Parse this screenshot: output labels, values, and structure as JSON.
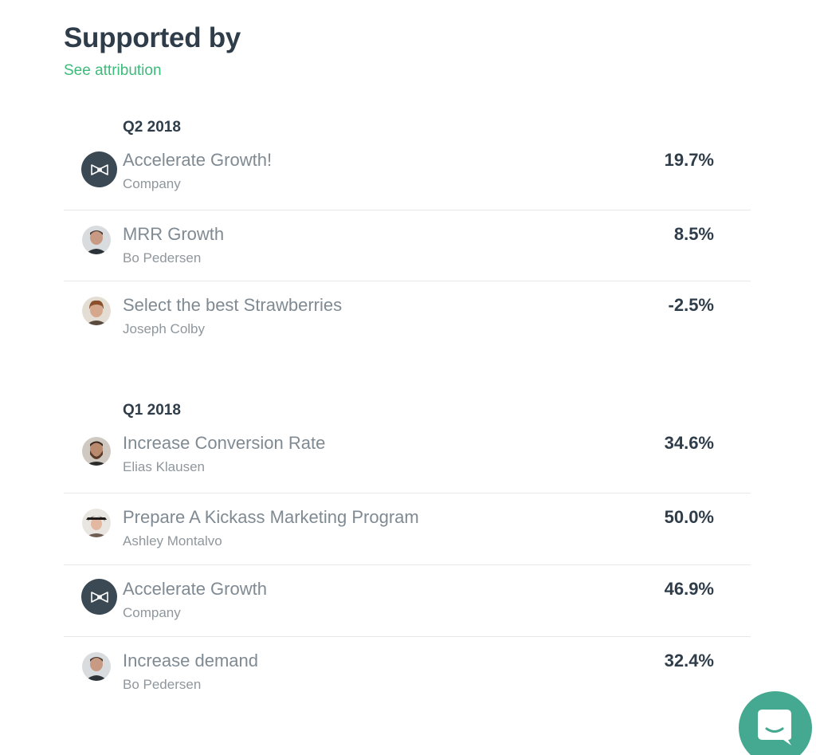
{
  "header": {
    "title": "Supported by",
    "attribution_link": "See attribution"
  },
  "sections": [
    {
      "label": "Q2 2018",
      "goals": [
        {
          "title": "Accelerate Growth!",
          "owner": "Company",
          "percent": "19.7%",
          "avatar": "company-bowtie-icon"
        },
        {
          "title": "MRR Growth",
          "owner": "Bo Pedersen",
          "percent": "8.5%",
          "avatar": "user-photo"
        },
        {
          "title": "Select the best Strawberries",
          "owner": "Joseph Colby",
          "percent": "-2.5%",
          "avatar": "user-photo"
        }
      ]
    },
    {
      "label": "Q1 2018",
      "goals": [
        {
          "title": "Increase Conversion Rate",
          "owner": "Elias Klausen",
          "percent": "34.6%",
          "avatar": "user-photo"
        },
        {
          "title": "Prepare A Kickass Marketing Program",
          "owner": "Ashley Montalvo",
          "percent": "50.0%",
          "avatar": "user-photo"
        },
        {
          "title": "Accelerate Growth",
          "owner": "Company",
          "percent": "46.9%",
          "avatar": "company-bowtie-icon"
        },
        {
          "title": "Increase demand",
          "owner": "Bo Pedersen",
          "percent": "32.4%",
          "avatar": "user-photo"
        }
      ]
    }
  ],
  "colors": {
    "heading": "#2f3d4a",
    "link": "#3dbb7a",
    "goal_title": "#7f8a93",
    "owner": "#8f979d",
    "company_avatar": "#3b4954",
    "chat_launcher": "#45a890"
  },
  "chat": {
    "icon": "chat-bubble-icon"
  }
}
